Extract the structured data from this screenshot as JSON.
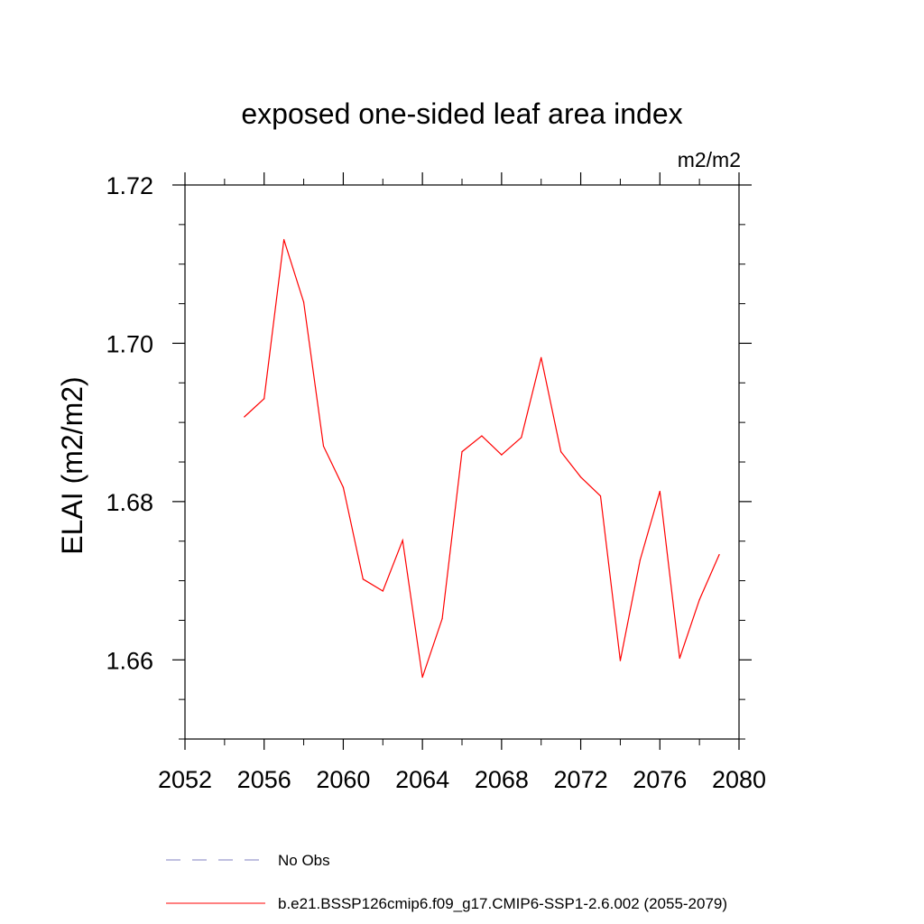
{
  "chart_data": {
    "type": "line",
    "title": "exposed one-sided leaf area index",
    "units": "m2/m2",
    "xlabel": "",
    "ylabel": "ELAI  (m2/m2)",
    "xlim": [
      2052,
      2080
    ],
    "ylim": [
      1.65,
      1.72
    ],
    "x_ticks": [
      2052,
      2056,
      2060,
      2064,
      2068,
      2072,
      2076,
      2080
    ],
    "x_tick_labels": [
      "2052",
      "2056",
      "2060",
      "2064",
      "2068",
      "2072",
      "2076",
      "2080"
    ],
    "y_ticks": [
      1.66,
      1.68,
      1.7,
      1.72
    ],
    "y_tick_labels": [
      "1.66",
      "1.68",
      "1.70",
      "1.72"
    ],
    "y_minor_step": 0.005,
    "x_minor_step": 1,
    "grid": false,
    "series": [
      {
        "name": "b.e21.BSSP126cmip6.f09_g17.CMIP6-SSP1-2.6.002 (2055-2079)",
        "color": "#ff0000",
        "style": "solid",
        "x": [
          2055,
          2056,
          2057,
          2058,
          2059,
          2060,
          2061,
          2062,
          2063,
          2064,
          2065,
          2066,
          2067,
          2068,
          2069,
          2070,
          2071,
          2072,
          2073,
          2074,
          2075,
          2076,
          2077,
          2078,
          2079
        ],
        "values": [
          1.6907,
          1.693,
          1.7131,
          1.7052,
          1.687,
          1.6818,
          1.6702,
          1.6687,
          1.6751,
          1.6578,
          1.6652,
          1.6863,
          1.6883,
          1.6859,
          1.6881,
          1.6982,
          1.6863,
          1.6831,
          1.6807,
          1.6599,
          1.6726,
          1.6813,
          1.6602,
          1.6676,
          1.6733
        ]
      }
    ],
    "legend": {
      "placement": "bottom",
      "entries": [
        {
          "label": "No Obs",
          "color": "#8080c0",
          "style": "dashed"
        },
        {
          "label": "b.e21.BSSP126cmip6.f09_g17.CMIP6-SSP1-2.6.002 (2055-2079)",
          "color": "#ff0000",
          "style": "solid"
        }
      ]
    }
  }
}
